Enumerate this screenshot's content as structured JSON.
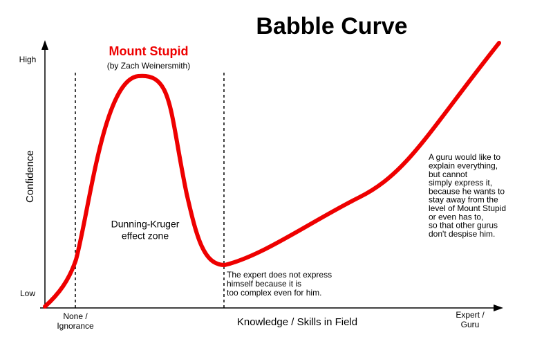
{
  "title": "Babble Curve",
  "y_axis": {
    "label": "Confidence",
    "high": "High",
    "low": "Low"
  },
  "x_axis": {
    "label": "Knowledge / Skills in Field",
    "start": [
      "None /",
      "Ignorance"
    ],
    "end": [
      "Expert /",
      "Guru"
    ]
  },
  "peak": {
    "label": "Mount Stupid",
    "credit": "(by Zach Weinersmith)"
  },
  "zone": [
    "Dunning-Kruger",
    "effect zone"
  ],
  "expert_note": [
    "The expert does not express",
    "himself because it is",
    "too complex even for him."
  ],
  "guru_note": [
    "A guru would like to",
    "explain everything,",
    "but cannot",
    "simply express it,",
    "because he wants to",
    "stay away from the",
    "level of Mount Stupid",
    "or even has to,",
    "so that other gurus",
    "don't despise him."
  ]
}
